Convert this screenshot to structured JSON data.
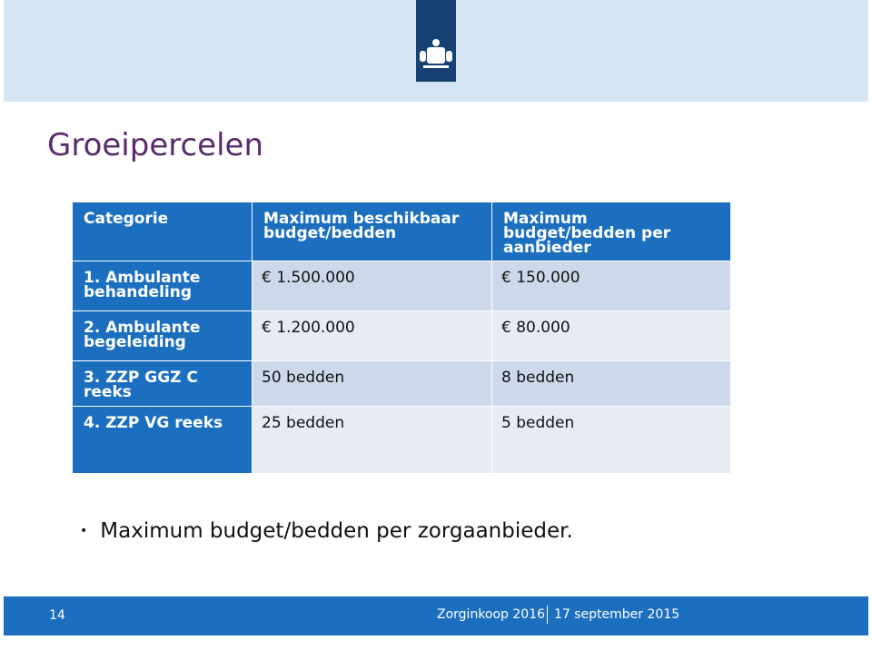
{
  "header": {
    "title": "Groeipercelen"
  },
  "table": {
    "columns": [
      "Categorie",
      "Maximum beschikbaar budget/bedden",
      "Maximum budget/bedden per aanbieder"
    ],
    "rows": [
      [
        "1. Ambulante behandeling",
        "€ 1.500.000",
        "€ 150.000"
      ],
      [
        "2. Ambulante begeleiding",
        "€ 1.200.000",
        "€ 80.000"
      ],
      [
        "3. ZZP GGZ C reeks",
        "50 bedden",
        "8 bedden"
      ],
      [
        "4. ZZP VG reeks",
        "25 bedden",
        "5 bedden"
      ]
    ]
  },
  "bullets": [
    "Maximum budget/bedden per zorgaanbieder."
  ],
  "footer": {
    "page": "14",
    "event": "Zorginkoop 2016",
    "date": "17 september 2015"
  }
}
